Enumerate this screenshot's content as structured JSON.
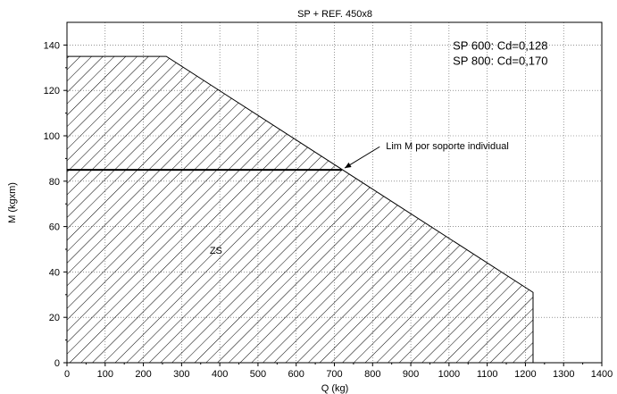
{
  "chart_data": {
    "type": "area",
    "title": "SP + REF. 450x8",
    "xlabel": "Q (kg)",
    "ylabel": "M (kgxm)",
    "xlim": [
      0,
      1400
    ],
    "ylim": [
      0,
      150
    ],
    "x_ticks": [
      0,
      100,
      200,
      300,
      400,
      500,
      600,
      700,
      800,
      900,
      1000,
      1100,
      1200,
      1300,
      1400
    ],
    "y_ticks": [
      0,
      20,
      40,
      60,
      80,
      100,
      120,
      140
    ],
    "grid": true,
    "region": {
      "label": "ZS",
      "label_at": [
        390,
        48
      ],
      "fill": "hatched",
      "boundary": [
        [
          0,
          0
        ],
        [
          0,
          135
        ],
        [
          260,
          135
        ],
        [
          1220,
          31
        ],
        [
          1220,
          0
        ]
      ]
    },
    "limit_line": {
      "y": 85,
      "x_range": [
        0,
        720
      ],
      "label": "Lim M por soporte individual",
      "label_at": [
        870,
        94
      ],
      "arrow_to": [
        720,
        85
      ]
    },
    "notes": [
      "SP 600: Cd=0,128",
      "SP 800: Cd=0,170"
    ],
    "notes_at": [
      1010,
      138
    ]
  }
}
